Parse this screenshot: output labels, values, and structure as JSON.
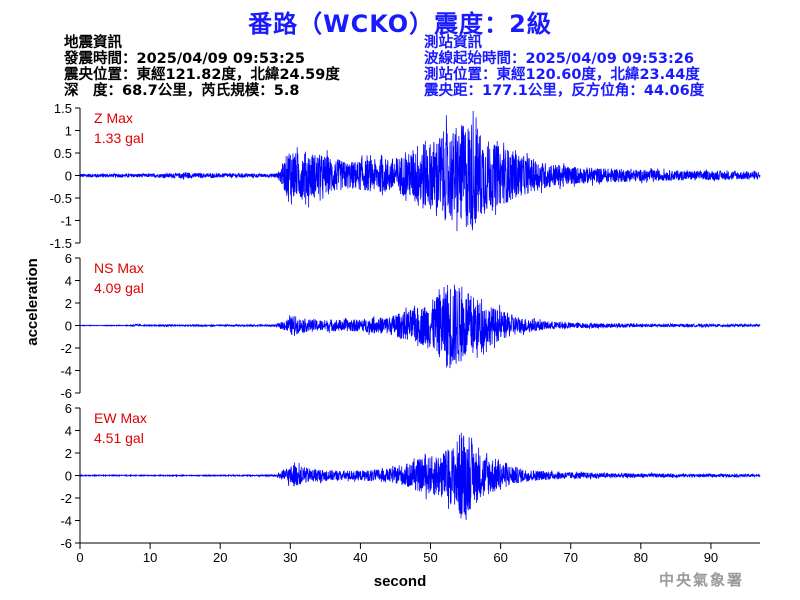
{
  "header": {
    "title": "番路（WCKO）震度：2級",
    "left_info": [
      "地震資訊",
      "發震時間：2025/04/09 09:53:25",
      "震央位置：東經121.82度，北緯24.59度",
      "深　度：68.7公里，芮氏規模：5.8"
    ],
    "right_info": [
      "測站資訊",
      "波線起始時間：2025/04/09 09:53:26",
      "測站位置：東經120.60度，北緯23.44度",
      "震央距：177.1公里，反方位角：44.06度"
    ]
  },
  "colors": {
    "title": "#1a1aff",
    "trace": "#0000ff",
    "max_label": "#e00000",
    "right_info": "#1a1aff",
    "axis": "#000000",
    "watermark": "#9a9a9a"
  },
  "footer": {
    "watermark": "中央氣象署"
  },
  "chart_data": {
    "type": "line",
    "xlabel": "second",
    "ylabel": "acceleration",
    "xlim": [
      0,
      97
    ],
    "xticks": [
      0,
      10,
      20,
      30,
      40,
      50,
      60,
      70,
      80,
      90
    ],
    "panels": [
      {
        "name": "Z",
        "max_label": "Z Max",
        "max_value": "1.33 gal",
        "ylim": [
          -1.5,
          1.5
        ],
        "yticks": [
          1.5,
          1,
          0.5,
          0,
          -0.5,
          -1,
          -1.5
        ],
        "ytick_labels": [
          "1.5",
          "1",
          "0.5",
          "0",
          "-0.5",
          "-1",
          "-1.5"
        ],
        "envelope": [
          [
            0,
            0.04
          ],
          [
            5,
            0.04
          ],
          [
            10,
            0.04
          ],
          [
            14,
            0.05
          ],
          [
            15,
            0.09
          ],
          [
            16,
            0.05
          ],
          [
            27,
            0.04
          ],
          [
            28.2,
            0.06
          ],
          [
            29.2,
            0.35
          ],
          [
            30,
            0.7
          ],
          [
            30.8,
            0.5
          ],
          [
            32,
            0.55
          ],
          [
            35,
            0.45
          ],
          [
            38,
            0.3
          ],
          [
            41,
            0.35
          ],
          [
            45,
            0.4
          ],
          [
            47,
            0.5
          ],
          [
            48.5,
            0.8
          ],
          [
            50,
            0.75
          ],
          [
            52,
            1.0
          ],
          [
            53.5,
            1.0
          ],
          [
            55,
            1.2
          ],
          [
            56,
            1.25
          ],
          [
            57.5,
            0.9
          ],
          [
            59,
            0.7
          ],
          [
            61,
            0.6
          ],
          [
            63,
            0.45
          ],
          [
            66,
            0.3
          ],
          [
            70,
            0.2
          ],
          [
            75,
            0.16
          ],
          [
            80,
            0.13
          ],
          [
            85,
            0.11
          ],
          [
            90,
            0.1
          ],
          [
            97,
            0.09
          ]
        ]
      },
      {
        "name": "NS",
        "max_label": "NS Max",
        "max_value": "4.09 gal",
        "ylim": [
          -6,
          6
        ],
        "yticks": [
          6,
          4,
          2,
          0,
          -2,
          -4,
          -6
        ],
        "ytick_labels": [
          "6",
          "4",
          "2",
          "0",
          "-2",
          "-4",
          "-6"
        ],
        "envelope": [
          [
            0,
            0.03
          ],
          [
            7,
            0.03
          ],
          [
            8,
            0.12
          ],
          [
            9,
            0.04
          ],
          [
            11,
            0.05
          ],
          [
            12.5,
            0.12
          ],
          [
            14,
            0.05
          ],
          [
            28,
            0.08
          ],
          [
            29,
            0.4
          ],
          [
            30.5,
            0.9
          ],
          [
            31.5,
            0.6
          ],
          [
            35,
            0.5
          ],
          [
            40,
            0.55
          ],
          [
            44,
            0.8
          ],
          [
            47,
            1.4
          ],
          [
            49,
            1.8
          ],
          [
            51,
            2.6
          ],
          [
            52.5,
            4.0
          ],
          [
            53.5,
            3.8
          ],
          [
            55,
            3.0
          ],
          [
            56,
            2.8
          ],
          [
            57,
            2.2
          ],
          [
            59,
            1.6
          ],
          [
            61,
            1.1
          ],
          [
            63,
            0.7
          ],
          [
            66,
            0.4
          ],
          [
            70,
            0.25
          ],
          [
            75,
            0.2
          ],
          [
            80,
            0.15
          ],
          [
            90,
            0.12
          ],
          [
            97,
            0.1
          ]
        ]
      },
      {
        "name": "EW",
        "max_label": "EW Max",
        "max_value": "4.51 gal",
        "ylim": [
          -6,
          6
        ],
        "yticks": [
          6,
          4,
          2,
          0,
          -2,
          -4,
          -6
        ],
        "ytick_labels": [
          "6",
          "4",
          "2",
          "0",
          "-2",
          "-4",
          "-6"
        ],
        "envelope": [
          [
            0,
            0.04
          ],
          [
            20,
            0.04
          ],
          [
            28,
            0.08
          ],
          [
            29,
            0.5
          ],
          [
            30.5,
            1.0
          ],
          [
            31.5,
            0.8
          ],
          [
            33,
            0.6
          ],
          [
            36,
            0.45
          ],
          [
            40,
            0.45
          ],
          [
            44,
            0.6
          ],
          [
            46,
            0.9
          ],
          [
            48,
            1.4
          ],
          [
            50,
            1.7
          ],
          [
            52,
            2.2
          ],
          [
            53.5,
            2.8
          ],
          [
            54.5,
            4.3
          ],
          [
            55.5,
            3.2
          ],
          [
            57,
            2.0
          ],
          [
            59,
            1.6
          ],
          [
            61,
            1.0
          ],
          [
            63,
            0.6
          ],
          [
            66,
            0.4
          ],
          [
            70,
            0.3
          ],
          [
            75,
            0.22
          ],
          [
            80,
            0.18
          ],
          [
            90,
            0.14
          ],
          [
            97,
            0.12
          ]
        ]
      }
    ]
  }
}
